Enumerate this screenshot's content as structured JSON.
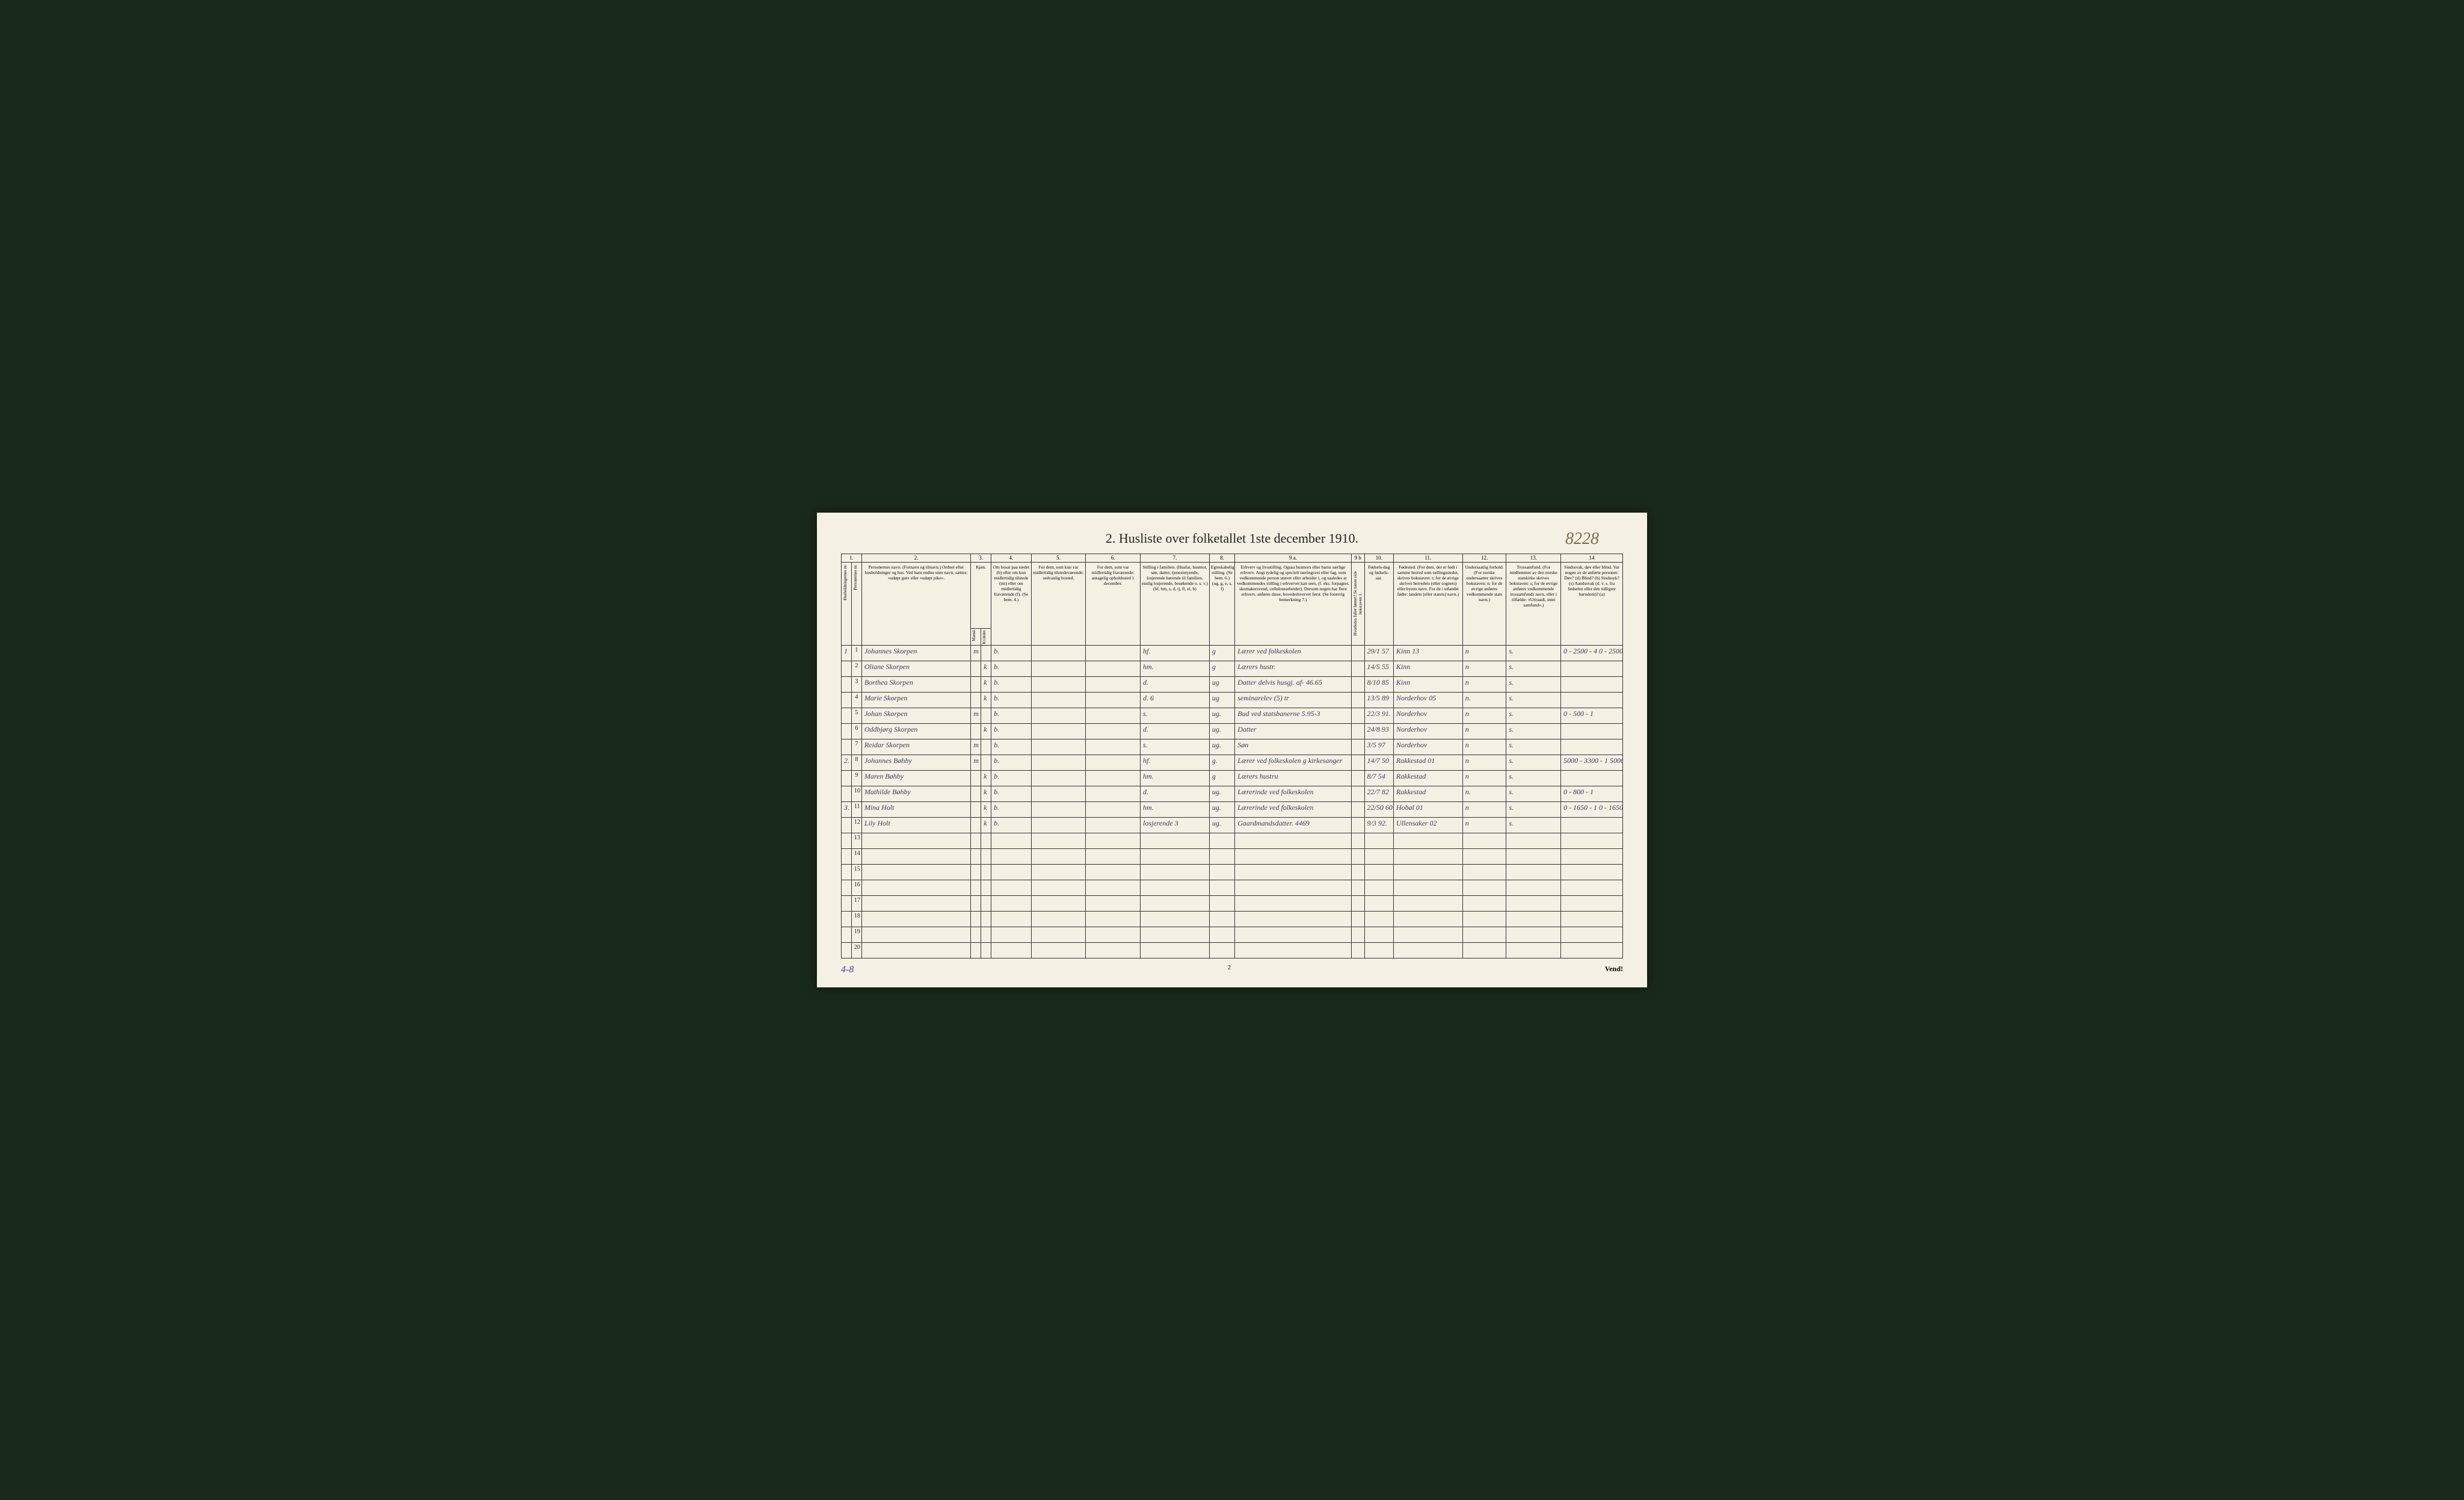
{
  "page": {
    "title": "2. Husliste over folketallet 1ste december 1910.",
    "handwritten_id": "8228",
    "footer_page": "2",
    "footer_vend": "Vend!",
    "tally": "4-8"
  },
  "colors": {
    "paper": "#f4f0e4",
    "ink": "#222222",
    "handwriting": "#3a3a5a",
    "pencil": "#7a6a4a",
    "border": "#333333",
    "background": "#1a2a1a"
  },
  "column_numbers": [
    "1.",
    "2.",
    "3.",
    "4.",
    "5.",
    "6.",
    "7.",
    "8.",
    "9 a.",
    "9 b",
    "10.",
    "11.",
    "12.",
    "13.",
    "14"
  ],
  "headers": {
    "hh": "Husholdningernes nr.",
    "pn": "Personernes nr.",
    "name": "Personernes navn.\n(Fornavn og tilnavn.)\nOrdnet efter husholdninger og hus.\nVed barn endnu uten navn, sættes: «udøpt gut» eller «udøpt pike».",
    "sex_group": "Kjøn.",
    "sex_m": "Mænd.",
    "sex_k": "Kvinder.",
    "sex_mk": "m. k.",
    "bosat": "Om bosat paa stedet (b) eller om kun midlertidig tilstede (mt) eller om midlertidig fraværende (f). (Se bem. 4.)",
    "tilstede": "For dem, som kun var midlertidig tilstedeværende:\nsedvanlig bosted.",
    "frav": "For dem, som var midlertidig fraværende:\nantagelig opholdssted 1 december.",
    "stilling": "Stilling i familien.\n(Husfar, husmor, søn, datter, tjenestetyende, losjerende hørende til familien, enslig losjerende, besøkende o. s. v.)\n(hf, hm, s, d, tj, fl, el, b)",
    "egte": "Egteskabelig stilling. (Se bem. 6.) (ug, g, e, s, f)",
    "erhverv": "Erhverv og livsstilling.\nOgsaa husmors eller barns særlige erhverv. Angi tydelig og specielt næringsvei eller fag, som vedkommende person utøver eller arbeider i, og saaledes at vedkommendes stilling i erhvervet kan sees, (f. eks. forpagter, skomakersvend, cellulosearbeider). Dersom nogen har flere erhverv, anføres disse, hovederhvervet først. (Se forøvrig bemerkning 7.)",
    "hoved": "Hvorledes faller lønnet? Se næste side bokstaven: l.",
    "fdato": "Fødsels-dag og fødsels-aar.",
    "fsted": "Fødested.\n(For dem, der er født i samme herred som tællingsstedet, skrives bokstaven: t; for de øvrige skrives herredets (eller sognets) eller byens navn. For de i utlandet fødte: landets (eller statets) navn.)",
    "under": "Undersaatlig forhold.\n(For norske undersaatter skrives bokstaven: n; for de øvrige anføres vedkommende stats navn.)",
    "tros": "Trossamfund.\n(For medlemmer av den norske statskirke skrives bokstaven: s; for de øvrige anføres vedkommende trossamfunds navn, eller i tilfælde: «Uttraadt, intet samfund».)",
    "sinds": "Sindssvak, døv eller blind.\nVar nogen av de anførte personer:\nDøv? (d)\nBlind? (b)\nSindssyk? (s)\nAandssvak (d. v. s. fra fødselen eller den tidligste barndom)? (a)"
  },
  "rows": [
    {
      "hh": "1",
      "pn": "1",
      "name": "Johannes Skorpen",
      "m": "m",
      "k": "",
      "bosat": "b.",
      "tilstede": "",
      "frav": "",
      "stilling": "hf.",
      "egte": "g",
      "erhverv": "Lærer ved folkeskolen",
      "hoved": "",
      "fdato": "29/1 57",
      "fsted": "Kinn 13",
      "under": "n",
      "tros": "s.",
      "sinds": "0 - 2500 - 4\n0 - 2500 - 2"
    },
    {
      "hh": "",
      "pn": "2",
      "name": "Oliane Skorpen",
      "m": "",
      "k": "k",
      "bosat": "b.",
      "tilstede": "",
      "frav": "",
      "stilling": "hm.",
      "egte": "g",
      "erhverv": "Lærers hustr.",
      "hoved": "",
      "fdato": "14/5 55",
      "fsted": "Kinn",
      "under": "n",
      "tros": "s.",
      "sinds": ""
    },
    {
      "hh": "",
      "pn": "3",
      "name": "Borthea Skorpen",
      "m": "",
      "k": "k",
      "bosat": "b.",
      "tilstede": "",
      "frav": "",
      "stilling": "d.",
      "egte": "ug",
      "erhverv": "Datter delvis husgj. af- 46.65",
      "hoved": "",
      "fdato": "8/10 85",
      "fsted": "Kinn",
      "under": "n",
      "tros": "s.",
      "sinds": ""
    },
    {
      "hh": "",
      "pn": "4",
      "name": "Marie Skorpen",
      "m": "",
      "k": "k",
      "bosat": "b.",
      "tilstede": "",
      "frav": "",
      "stilling": "d. 6",
      "egte": "ug",
      "erhverv": "seminarelev (5) tr",
      "hoved": "",
      "fdato": "13/5 89",
      "fsted": "Norderhov 05",
      "under": "n.",
      "tros": "s.",
      "sinds": ""
    },
    {
      "hh": "",
      "pn": "5",
      "name": "Johan Skorpen",
      "m": "m",
      "k": "",
      "bosat": "b.",
      "tilstede": "",
      "frav": "",
      "stilling": "s.",
      "egte": "ug.",
      "erhverv": "Bud ved statsbanerne 5.95-3",
      "hoved": "",
      "fdato": "22/3 91.",
      "fsted": "Norderhov",
      "under": "n",
      "tros": "s.",
      "sinds": "0 - 500 - 1"
    },
    {
      "hh": "",
      "pn": "6",
      "name": "Oddbjørg Skorpen",
      "m": "",
      "k": "k",
      "bosat": "b.",
      "tilstede": "",
      "frav": "",
      "stilling": "d.",
      "egte": "ug.",
      "erhverv": "Datter",
      "hoved": "",
      "fdato": "24/8 93",
      "fsted": "Norderhov",
      "under": "n",
      "tros": "s.",
      "sinds": ""
    },
    {
      "hh": "",
      "pn": "7",
      "name": "Reidar Skorpen",
      "m": "m",
      "k": "",
      "bosat": "b.",
      "tilstede": "",
      "frav": "",
      "stilling": "s.",
      "egte": "ug.",
      "erhverv": "Søn",
      "hoved": "",
      "fdato": "3/5 97",
      "fsted": "Norderhov",
      "under": "n",
      "tros": "s.",
      "sinds": ""
    },
    {
      "hh": "2.",
      "pn": "8",
      "name": "Johannes Bøhby",
      "m": "m",
      "k": "",
      "bosat": "b.",
      "tilstede": "",
      "frav": "",
      "stilling": "hf.",
      "egte": "g.",
      "erhverv": "Lærer ved folkeskolen g kirkesanger",
      "hoved": "",
      "fdato": "14/7 50",
      "fsted": "Rakkestad 01",
      "under": "n",
      "tros": "s.",
      "sinds": "5000 - 3300 - 1\n5000 - 3300 - 1"
    },
    {
      "hh": "",
      "pn": "9",
      "name": "Maren Bøhby",
      "m": "",
      "k": "k",
      "bosat": "b.",
      "tilstede": "",
      "frav": "",
      "stilling": "hm.",
      "egte": "g",
      "erhverv": "Lærers hustru",
      "hoved": "",
      "fdato": "8/7 54",
      "fsted": "Rakkestad",
      "under": "n",
      "tros": "s.",
      "sinds": ""
    },
    {
      "hh": "",
      "pn": "10",
      "name": "Mathilde Bøhby",
      "m": "",
      "k": "k",
      "bosat": "b.",
      "tilstede": "",
      "frav": "",
      "stilling": "d.",
      "egte": "ug.",
      "erhverv": "Lærerinde ved folkeskolen",
      "hoved": "",
      "fdato": "22/7 82",
      "fsted": "Rakkestad",
      "under": "n.",
      "tros": "s.",
      "sinds": "0 - 800 - 1"
    },
    {
      "hh": "3.",
      "pn": "11",
      "name": "Mina Holt",
      "m": "",
      "k": "k",
      "bosat": "b.",
      "tilstede": "",
      "frav": "",
      "stilling": "hm.",
      "egte": "ug.",
      "erhverv": "Lærerinde ved folkeskolen",
      "hoved": "",
      "fdato": "22/50 60",
      "fsted": "Hobøl 01",
      "under": "n",
      "tros": "s.",
      "sinds": "0 - 1650 - 1\n0 - 1650 - 1"
    },
    {
      "hh": "",
      "pn": "12",
      "name": "Lily Holt",
      "m": "",
      "k": "k",
      "bosat": "b.",
      "tilstede": "",
      "frav": "",
      "stilling": "losjerende 3",
      "egte": "ug.",
      "erhverv": "Gaardmandsdatter. 4469",
      "hoved": "",
      "fdato": "9/3 92.",
      "fsted": "Ullensaker 02",
      "under": "n",
      "tros": "s.",
      "sinds": ""
    },
    {
      "hh": "",
      "pn": "13",
      "name": "",
      "m": "",
      "k": "",
      "bosat": "",
      "tilstede": "",
      "frav": "",
      "stilling": "",
      "egte": "",
      "erhverv": "",
      "hoved": "",
      "fdato": "",
      "fsted": "",
      "under": "",
      "tros": "",
      "sinds": ""
    },
    {
      "hh": "",
      "pn": "14",
      "name": "",
      "m": "",
      "k": "",
      "bosat": "",
      "tilstede": "",
      "frav": "",
      "stilling": "",
      "egte": "",
      "erhverv": "",
      "hoved": "",
      "fdato": "",
      "fsted": "",
      "under": "",
      "tros": "",
      "sinds": ""
    },
    {
      "hh": "",
      "pn": "15",
      "name": "",
      "m": "",
      "k": "",
      "bosat": "",
      "tilstede": "",
      "frav": "",
      "stilling": "",
      "egte": "",
      "erhverv": "",
      "hoved": "",
      "fdato": "",
      "fsted": "",
      "under": "",
      "tros": "",
      "sinds": ""
    },
    {
      "hh": "",
      "pn": "16",
      "name": "",
      "m": "",
      "k": "",
      "bosat": "",
      "tilstede": "",
      "frav": "",
      "stilling": "",
      "egte": "",
      "erhverv": "",
      "hoved": "",
      "fdato": "",
      "fsted": "",
      "under": "",
      "tros": "",
      "sinds": ""
    },
    {
      "hh": "",
      "pn": "17",
      "name": "",
      "m": "",
      "k": "",
      "bosat": "",
      "tilstede": "",
      "frav": "",
      "stilling": "",
      "egte": "",
      "erhverv": "",
      "hoved": "",
      "fdato": "",
      "fsted": "",
      "under": "",
      "tros": "",
      "sinds": ""
    },
    {
      "hh": "",
      "pn": "18",
      "name": "",
      "m": "",
      "k": "",
      "bosat": "",
      "tilstede": "",
      "frav": "",
      "stilling": "",
      "egte": "",
      "erhverv": "",
      "hoved": "",
      "fdato": "",
      "fsted": "",
      "under": "",
      "tros": "",
      "sinds": ""
    },
    {
      "hh": "",
      "pn": "19",
      "name": "",
      "m": "",
      "k": "",
      "bosat": "",
      "tilstede": "",
      "frav": "",
      "stilling": "",
      "egte": "",
      "erhverv": "",
      "hoved": "",
      "fdato": "",
      "fsted": "",
      "under": "",
      "tros": "",
      "sinds": ""
    },
    {
      "hh": "",
      "pn": "20",
      "name": "",
      "m": "",
      "k": "",
      "bosat": "",
      "tilstede": "",
      "frav": "",
      "stilling": "",
      "egte": "",
      "erhverv": "",
      "hoved": "",
      "fdato": "",
      "fsted": "",
      "under": "",
      "tros": "",
      "sinds": ""
    }
  ]
}
